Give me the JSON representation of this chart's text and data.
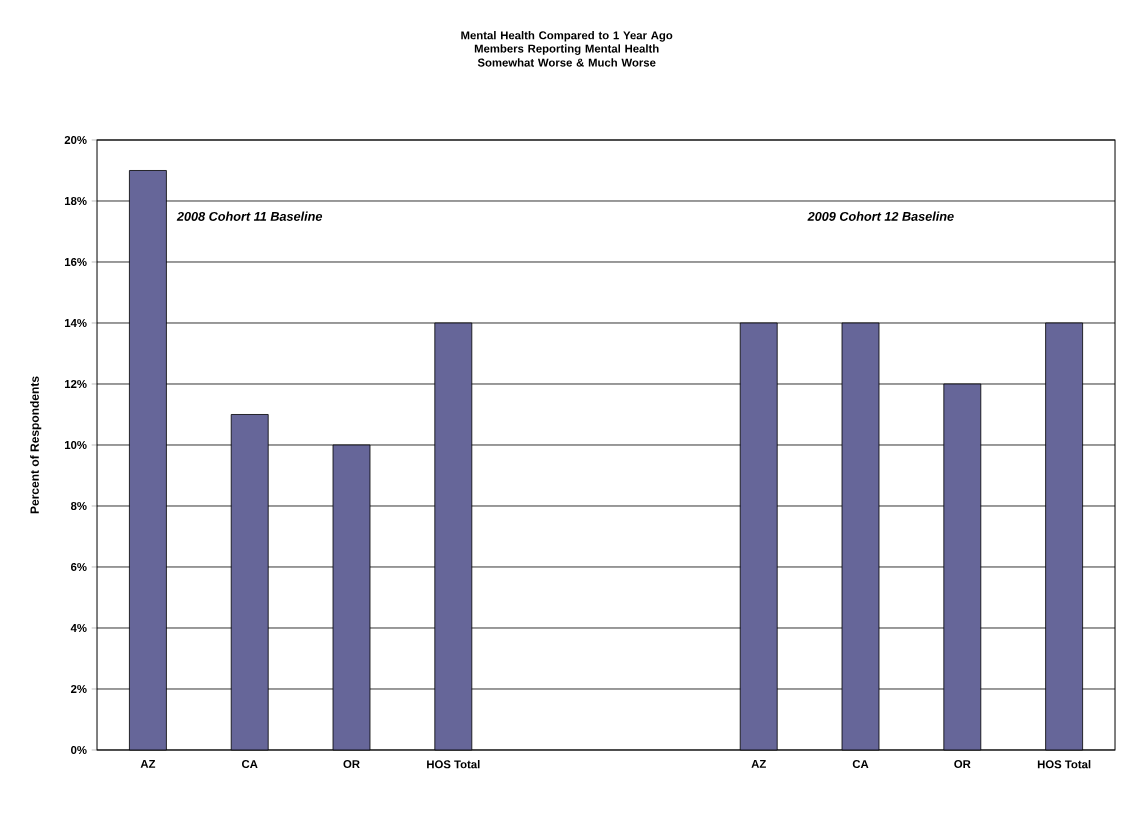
{
  "chart_data": {
    "type": "bar",
    "title": "Mental Health Compared to 1 Year Ago",
    "subtitle": "Members Reporting Mental Health Somewhat Worse & Much Worse",
    "ylabel": "Percent of Respondents",
    "categories": [
      "AZ",
      "CA",
      "OR",
      "HOS Total",
      null,
      null,
      "AZ",
      "CA",
      "OR",
      "HOS Total"
    ],
    "values": [
      19,
      11,
      10,
      14,
      null,
      null,
      14,
      14,
      12,
      14
    ],
    "color": "#666699",
    "ylim": [
      0,
      20
    ],
    "yticks": [
      {
        "value": 0,
        "label": "0%"
      },
      {
        "value": 2,
        "label": "2%"
      },
      {
        "value": 4,
        "label": "4%"
      },
      {
        "value": 6,
        "label": "6%"
      },
      {
        "value": 8,
        "label": "8%"
      },
      {
        "value": 10,
        "label": "10%"
      },
      {
        "value": 12,
        "label": "12%"
      },
      {
        "value": 14,
        "label": "14%"
      },
      {
        "value": 16,
        "label": "16%"
      },
      {
        "value": 18,
        "label": "18%"
      },
      {
        "value": 20,
        "label": "20%"
      }
    ],
    "grid": "y",
    "annotations": [
      "2008 Cohort 11 Baseline",
      "2009 Cohort 12 Baseline"
    ]
  }
}
